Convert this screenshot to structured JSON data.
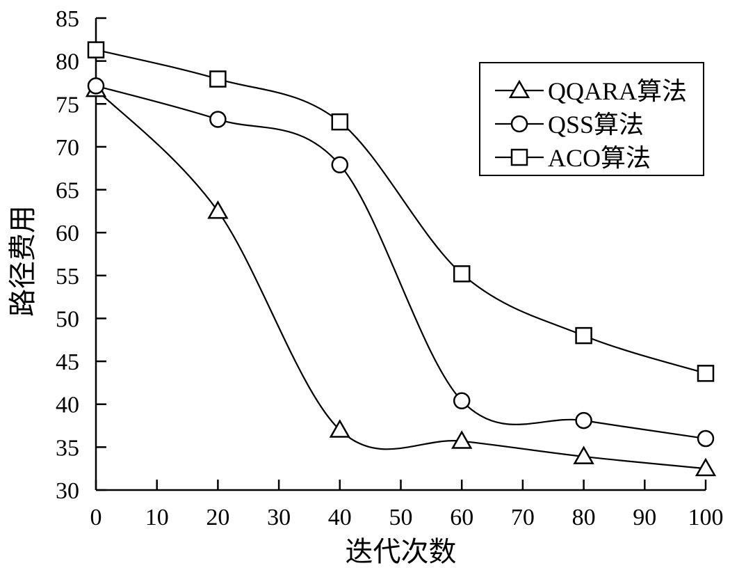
{
  "chart_data": {
    "type": "line",
    "title": "",
    "xlabel": "迭代次数",
    "ylabel": "路径费用",
    "xlim": [
      0,
      100
    ],
    "ylim": [
      30,
      85
    ],
    "xticks": [
      0,
      10,
      20,
      30,
      40,
      50,
      60,
      70,
      80,
      90,
      100
    ],
    "yticks": [
      30,
      35,
      40,
      45,
      50,
      55,
      60,
      65,
      70,
      75,
      80,
      85
    ],
    "grid": false,
    "legend_position": "top-right",
    "smooth": true,
    "series": [
      {
        "name": "QQARA算法",
        "marker": "triangle",
        "x": [
          0,
          20,
          40,
          60,
          80,
          100
        ],
        "values": [
          76.7,
          62.5,
          37.0,
          35.7,
          33.9,
          32.5
        ]
      },
      {
        "name": "QSS算法",
        "marker": "circle",
        "x": [
          0,
          20,
          40,
          60,
          80,
          100
        ],
        "values": [
          77.1,
          73.2,
          67.9,
          40.4,
          38.1,
          36.0
        ]
      },
      {
        "name": "ACO算法",
        "marker": "square",
        "x": [
          0,
          20,
          40,
          60,
          80,
          100
        ],
        "values": [
          81.3,
          77.9,
          72.9,
          55.2,
          48.0,
          43.6
        ]
      }
    ]
  }
}
